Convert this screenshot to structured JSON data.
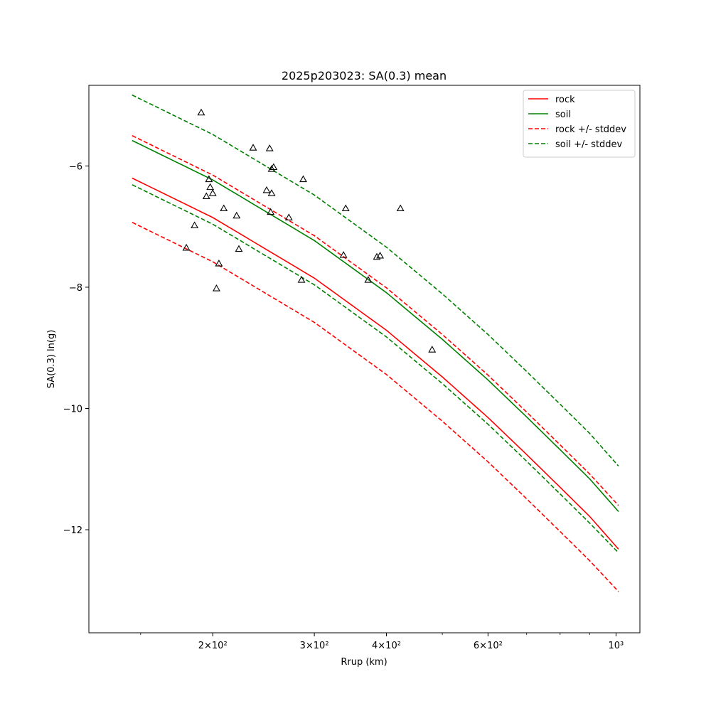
{
  "chart_data": {
    "type": "line",
    "title": "2025p203023: SA(0.3) mean",
    "xlabel": "Rrup (km)",
    "ylabel": "SA(0.3) ln(g)",
    "xscale": "log",
    "xlim": [
      122,
      1100
    ],
    "ylim": [
      -13.7,
      -4.67
    ],
    "x_ticks": [
      {
        "value": 200,
        "label": "2×10²"
      },
      {
        "value": 300,
        "label": "3×10²"
      },
      {
        "value": 400,
        "label": "4×10²"
      },
      {
        "value": 600,
        "label": "6×10²"
      },
      {
        "value": 1000,
        "label": "10³"
      }
    ],
    "y_ticks": [
      {
        "value": -6,
        "label": "−6"
      },
      {
        "value": -8,
        "label": "−8"
      },
      {
        "value": -10,
        "label": "−10"
      },
      {
        "value": -12,
        "label": "−12"
      }
    ],
    "legend_position": "top-right",
    "grid": false,
    "series": [
      {
        "name": "rock",
        "color": "#ff0000",
        "style": "solid",
        "x": [
          145,
          200,
          300,
          400,
          500,
          600,
          700,
          800,
          900,
          1010
        ],
        "y": [
          -6.2,
          -6.85,
          -7.85,
          -8.71,
          -9.48,
          -10.15,
          -10.76,
          -11.3,
          -11.78,
          -12.32
        ]
      },
      {
        "name": "soil",
        "color": "#008000",
        "style": "solid",
        "x": [
          145,
          200,
          300,
          400,
          500,
          600,
          700,
          800,
          900,
          1010
        ],
        "y": [
          -5.58,
          -6.23,
          -7.23,
          -8.09,
          -8.86,
          -9.53,
          -10.14,
          -10.68,
          -11.16,
          -11.7
        ]
      },
      {
        "name": "rock +/- stddev",
        "color": "#ff0000",
        "style": "dashed",
        "x": [
          145,
          200,
          300,
          400,
          500,
          600,
          700,
          800,
          900,
          1010
        ],
        "y": [
          -5.5,
          -6.15,
          -7.15,
          -8.01,
          -8.78,
          -9.45,
          -10.06,
          -10.6,
          -11.08,
          -11.6
        ]
      },
      {
        "name": "",
        "color": "#ff0000",
        "style": "dashed",
        "x": [
          145,
          200,
          300,
          400,
          500,
          600,
          700,
          800,
          900,
          1010
        ],
        "y": [
          -6.93,
          -7.58,
          -8.58,
          -9.44,
          -10.21,
          -10.88,
          -11.49,
          -12.03,
          -12.51,
          -13.02
        ]
      },
      {
        "name": "soil +/- stddev",
        "color": "#008000",
        "style": "dashed",
        "x": [
          145,
          200,
          300,
          400,
          500,
          600,
          700,
          800,
          900,
          1010
        ],
        "y": [
          -4.83,
          -5.48,
          -6.48,
          -7.34,
          -8.11,
          -8.78,
          -9.39,
          -9.93,
          -10.41,
          -10.95
        ]
      },
      {
        "name": "",
        "color": "#008000",
        "style": "dashed",
        "x": [
          145,
          200,
          300,
          400,
          500,
          600,
          700,
          800,
          900,
          1010
        ],
        "y": [
          -6.31,
          -6.96,
          -7.96,
          -8.82,
          -9.59,
          -10.26,
          -10.87,
          -11.41,
          -11.89,
          -12.38
        ]
      }
    ],
    "observations": {
      "marker": "triangle",
      "color": "#000000",
      "points": [
        {
          "x": 180,
          "y": -7.35
        },
        {
          "x": 186,
          "y": -6.98
        },
        {
          "x": 191,
          "y": -5.12
        },
        {
          "x": 195,
          "y": -6.5
        },
        {
          "x": 197,
          "y": -6.22
        },
        {
          "x": 198,
          "y": -6.35
        },
        {
          "x": 200,
          "y": -6.45
        },
        {
          "x": 203,
          "y": -8.02
        },
        {
          "x": 205,
          "y": -7.61
        },
        {
          "x": 209,
          "y": -6.7
        },
        {
          "x": 220,
          "y": -6.82
        },
        {
          "x": 222,
          "y": -7.37
        },
        {
          "x": 235,
          "y": -5.7
        },
        {
          "x": 248,
          "y": -6.4
        },
        {
          "x": 251,
          "y": -5.71
        },
        {
          "x": 252,
          "y": -6.76
        },
        {
          "x": 253,
          "y": -6.05
        },
        {
          "x": 253,
          "y": -6.45
        },
        {
          "x": 255,
          "y": -6.02
        },
        {
          "x": 271,
          "y": -6.85
        },
        {
          "x": 285,
          "y": -7.88
        },
        {
          "x": 287,
          "y": -6.22
        },
        {
          "x": 337,
          "y": -7.47
        },
        {
          "x": 340,
          "y": -6.7
        },
        {
          "x": 372,
          "y": -7.88
        },
        {
          "x": 385,
          "y": -7.5
        },
        {
          "x": 390,
          "y": -7.48
        },
        {
          "x": 423,
          "y": -6.7
        },
        {
          "x": 480,
          "y": -9.03
        }
      ]
    }
  }
}
